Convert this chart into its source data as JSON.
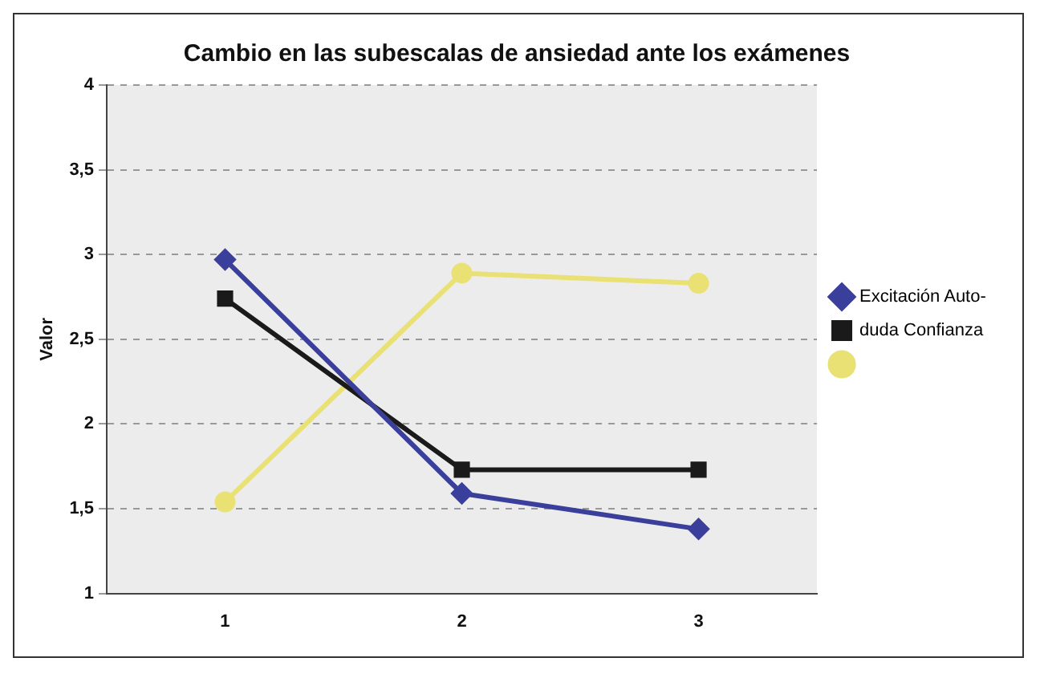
{
  "chart_data": {
    "type": "line",
    "title": "Cambio en las subescalas de ansiedad ante los exámenes",
    "ylabel": "Valor",
    "categories": [
      "1",
      "2",
      "3"
    ],
    "series": [
      {
        "name": "Excitación Auto-",
        "color": "#3b3f9c",
        "marker": "diamond",
        "values": [
          2.97,
          1.59,
          1.38
        ]
      },
      {
        "name": "duda Confianza",
        "color": "#1a1a1a",
        "marker": "square",
        "values": [
          2.74,
          1.73,
          1.73
        ]
      },
      {
        "color": "#e9e173",
        "marker": "circle",
        "values": [
          1.54,
          2.89,
          2.83
        ]
      }
    ],
    "ylim": [
      1,
      4
    ],
    "yticks": [
      1,
      {
        "value": 1.5,
        "label": "1,5"
      },
      2,
      {
        "value": 2.5,
        "label": "2,5"
      },
      3,
      {
        "value": 3.5,
        "label": "3,5"
      },
      4
    ],
    "grid": "y",
    "legend": "right",
    "line_style": "solid"
  }
}
